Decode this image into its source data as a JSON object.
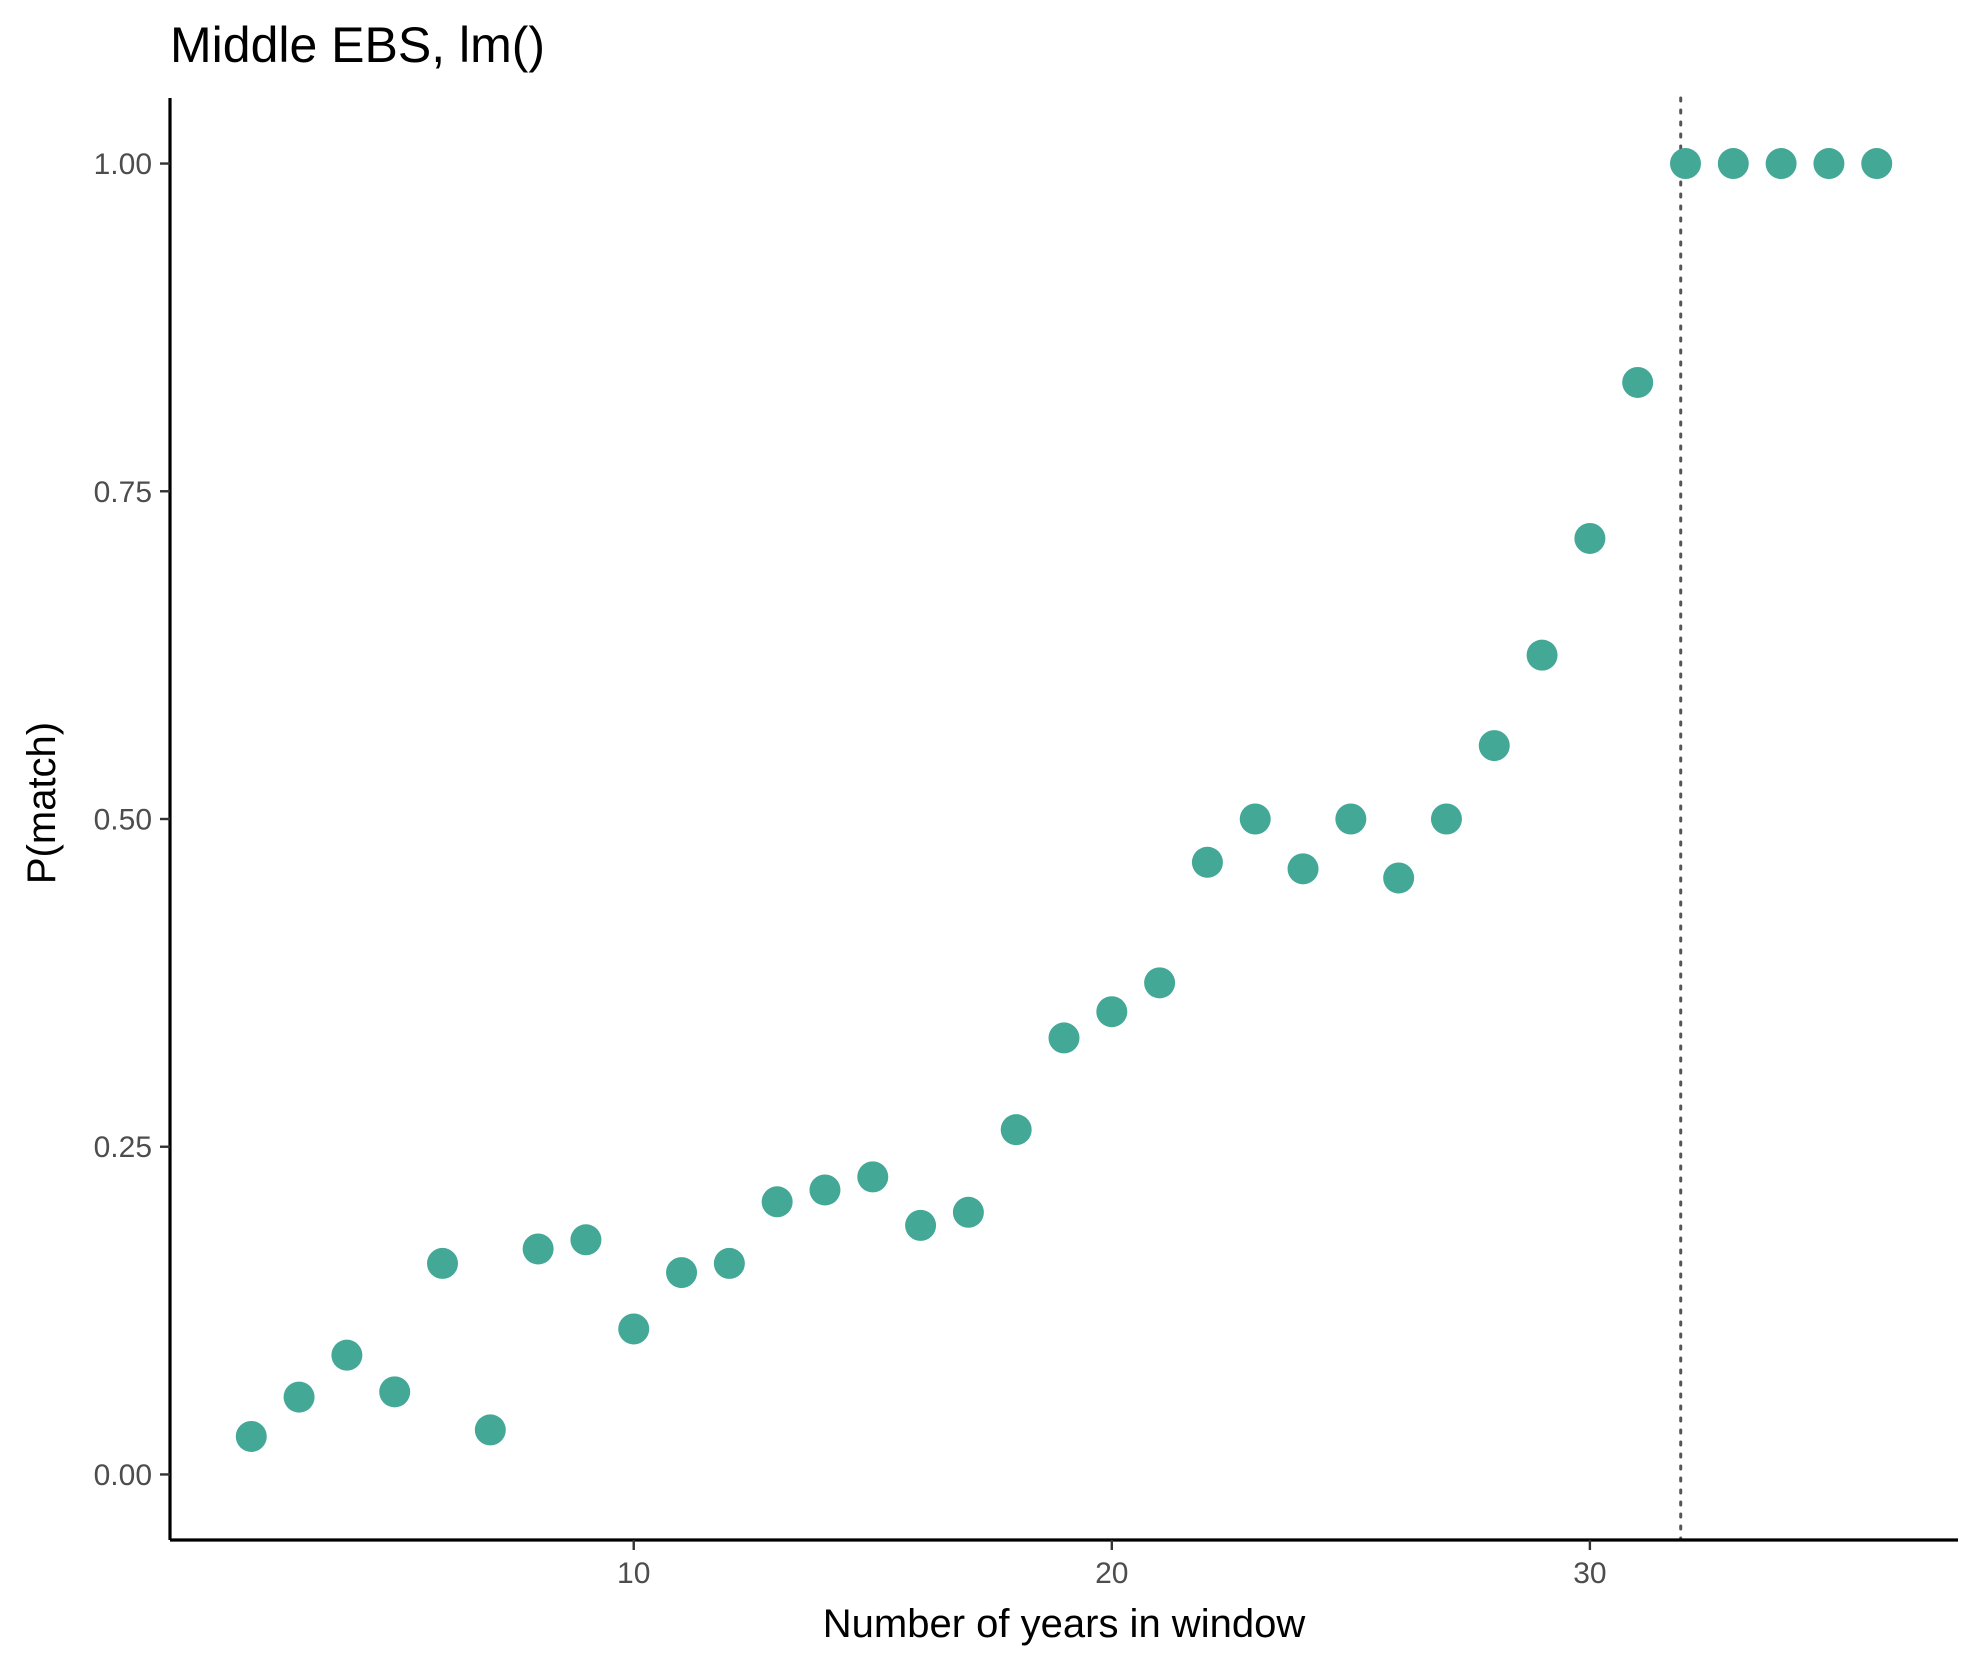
{
  "chart_data": {
    "type": "scatter",
    "title": "Middle EBS, lm()",
    "xlabel": "Number of years in window",
    "ylabel": "P(match)",
    "xlim": [
      0.3,
      37.7
    ],
    "ylim": [
      -0.05,
      1.05
    ],
    "x_ticks": [
      10,
      20,
      30
    ],
    "x_tick_labels": [
      "10",
      "20",
      "30"
    ],
    "y_ticks": [
      0,
      0.25,
      0.5,
      0.75,
      1.0
    ],
    "y_tick_labels": [
      "0.00",
      "0.25",
      "0.50",
      "0.75",
      "1.00"
    ],
    "reference_line_x": 31.9,
    "point_color": "#43a896",
    "grid": false,
    "points": [
      {
        "x": 2,
        "y": 0.029
      },
      {
        "x": 3,
        "y": 0.059
      },
      {
        "x": 4,
        "y": 0.091
      },
      {
        "x": 5,
        "y": 0.063
      },
      {
        "x": 6,
        "y": 0.161
      },
      {
        "x": 7,
        "y": 0.034
      },
      {
        "x": 8,
        "y": 0.172
      },
      {
        "x": 9,
        "y": 0.179
      },
      {
        "x": 10,
        "y": 0.111
      },
      {
        "x": 11,
        "y": 0.154
      },
      {
        "x": 12,
        "y": 0.161
      },
      {
        "x": 13,
        "y": 0.208
      },
      {
        "x": 14,
        "y": 0.217
      },
      {
        "x": 15,
        "y": 0.227
      },
      {
        "x": 16,
        "y": 0.19
      },
      {
        "x": 17,
        "y": 0.2
      },
      {
        "x": 18,
        "y": 0.263
      },
      {
        "x": 19,
        "y": 0.333
      },
      {
        "x": 20,
        "y": 0.353
      },
      {
        "x": 21,
        "y": 0.375
      },
      {
        "x": 22,
        "y": 0.467
      },
      {
        "x": 23,
        "y": 0.5
      },
      {
        "x": 24,
        "y": 0.462
      },
      {
        "x": 25,
        "y": 0.5
      },
      {
        "x": 26,
        "y": 0.455
      },
      {
        "x": 27,
        "y": 0.5
      },
      {
        "x": 28,
        "y": 0.556
      },
      {
        "x": 29,
        "y": 0.625
      },
      {
        "x": 30,
        "y": 0.714
      },
      {
        "x": 31,
        "y": 0.833
      },
      {
        "x": 32,
        "y": 1.0
      },
      {
        "x": 33,
        "y": 1.0
      },
      {
        "x": 34,
        "y": 1.0
      },
      {
        "x": 35,
        "y": 1.0
      },
      {
        "x": 36,
        "y": 1.0
      }
    ]
  }
}
